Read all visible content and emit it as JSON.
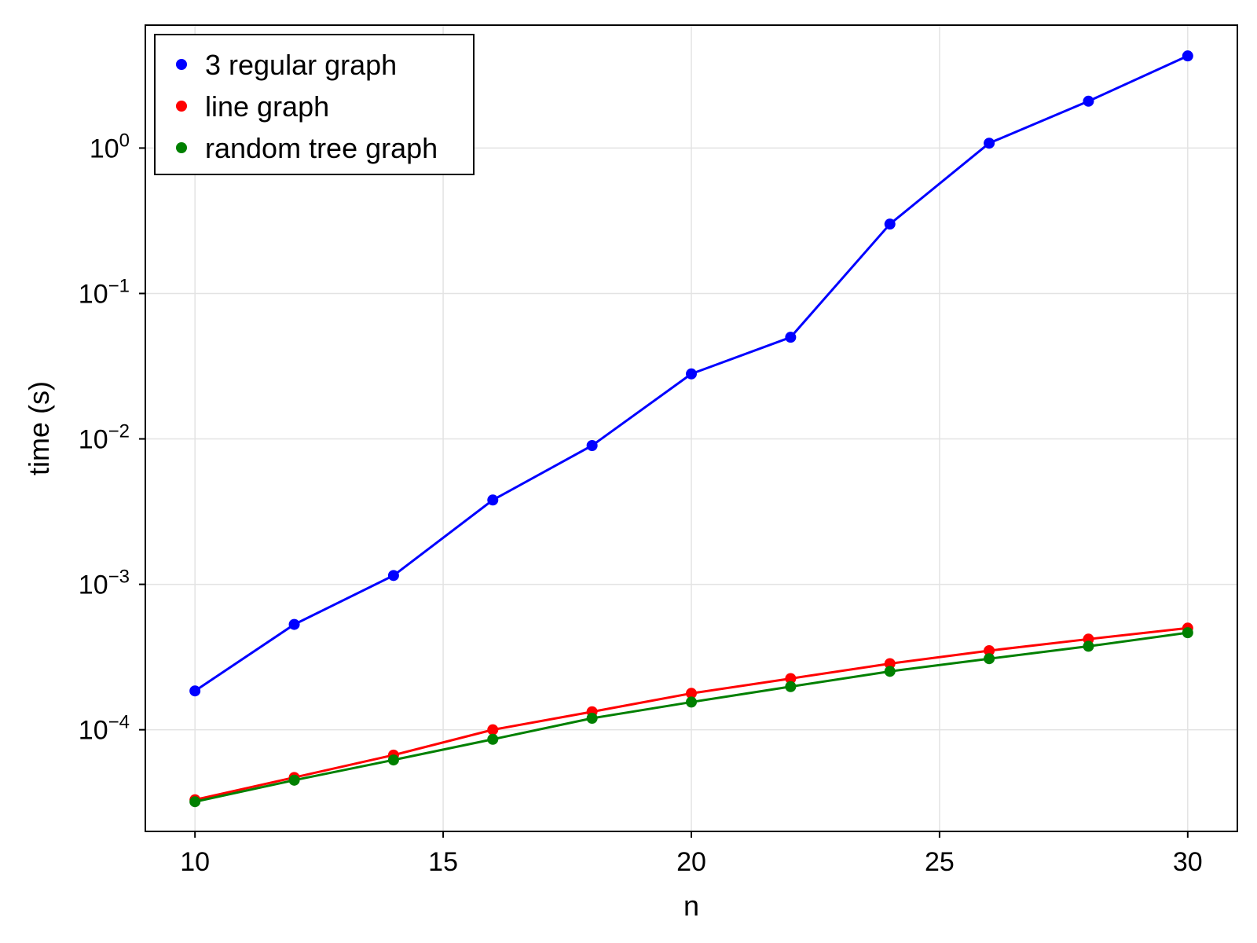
{
  "chart_data": {
    "type": "line",
    "title": "",
    "xlabel": "n",
    "ylabel": "time (s)",
    "xlim": [
      9,
      31
    ],
    "ylim": [
      2e-05,
      7
    ],
    "yscale": "log",
    "xticks": [
      10,
      15,
      20,
      25,
      30
    ],
    "xtick_labels": [
      "10",
      "15",
      "20",
      "25",
      "30"
    ],
    "yticks": [
      0.0001,
      0.001,
      0.01,
      0.1,
      1
    ],
    "ytick_labels": [
      {
        "base": "10",
        "exp": "−4"
      },
      {
        "base": "10",
        "exp": "−3"
      },
      {
        "base": "10",
        "exp": "−2"
      },
      {
        "base": "10",
        "exp": "−1"
      },
      {
        "base": "10",
        "exp": "0"
      }
    ],
    "grid": true,
    "legend_position": "top-left",
    "x": [
      10,
      12,
      14,
      16,
      18,
      20,
      22,
      24,
      26,
      28,
      30
    ],
    "series": [
      {
        "name": "3 regular graph",
        "color": "#0000ff",
        "values": [
          0.000185,
          0.00053,
          0.00115,
          0.0038,
          0.009,
          0.028,
          0.05,
          0.3,
          1.08,
          2.1,
          4.3
        ]
      },
      {
        "name": "line graph",
        "color": "#ff0000",
        "values": [
          3.3e-05,
          4.7e-05,
          6.7e-05,
          0.0001,
          0.000133,
          0.000178,
          0.000225,
          0.000285,
          0.00035,
          0.00042,
          0.0005
        ]
      },
      {
        "name": "random tree graph",
        "color": "#008000",
        "values": [
          3.2e-05,
          4.5e-05,
          6.2e-05,
          8.6e-05,
          0.00012,
          0.000155,
          0.000198,
          0.000252,
          0.000308,
          0.000375,
          0.000465
        ]
      }
    ]
  }
}
